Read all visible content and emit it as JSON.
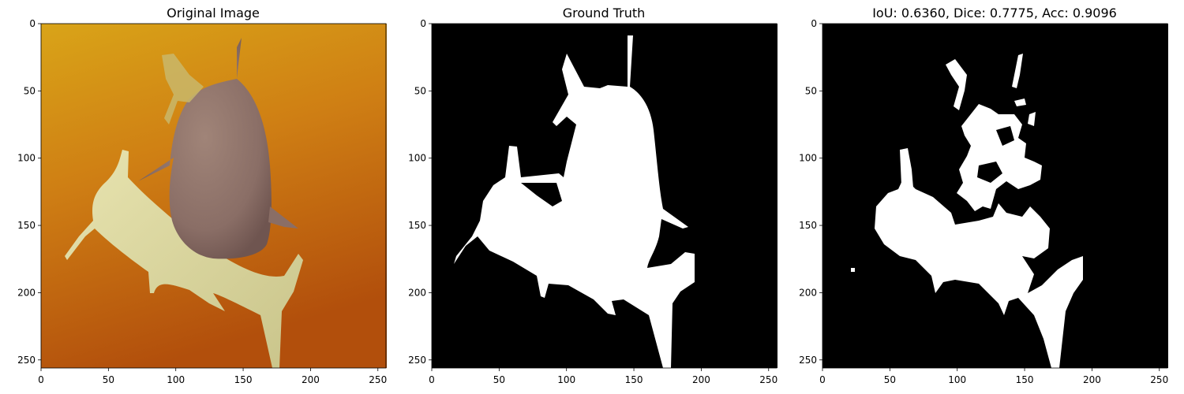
{
  "figure": {
    "panels": [
      {
        "id": "original",
        "title": "Original Image",
        "background": "#c86e12",
        "gradient": [
          "#d9a418",
          "#cf7f14",
          "#b24f0c"
        ]
      },
      {
        "id": "ground-truth",
        "title": "Ground Truth",
        "background": "#000000",
        "mask_color": "#ffffff"
      },
      {
        "id": "prediction",
        "title": "IoU: 0.6360, Dice: 0.7775, Acc: 0.9096",
        "background": "#000000",
        "mask_color": "#ffffff"
      }
    ],
    "axes": {
      "x_ticks": [
        "0",
        "50",
        "100",
        "150",
        "200",
        "250"
      ],
      "y_ticks": [
        "0",
        "50",
        "100",
        "150",
        "200",
        "250"
      ],
      "x_tick_values": [
        0,
        50,
        100,
        150,
        200,
        250
      ],
      "y_tick_values": [
        0,
        50,
        100,
        150,
        200,
        250
      ],
      "range": [
        0,
        256
      ]
    },
    "metrics": {
      "iou": 0.636,
      "dice": 0.7775,
      "accuracy": 0.9096
    }
  }
}
